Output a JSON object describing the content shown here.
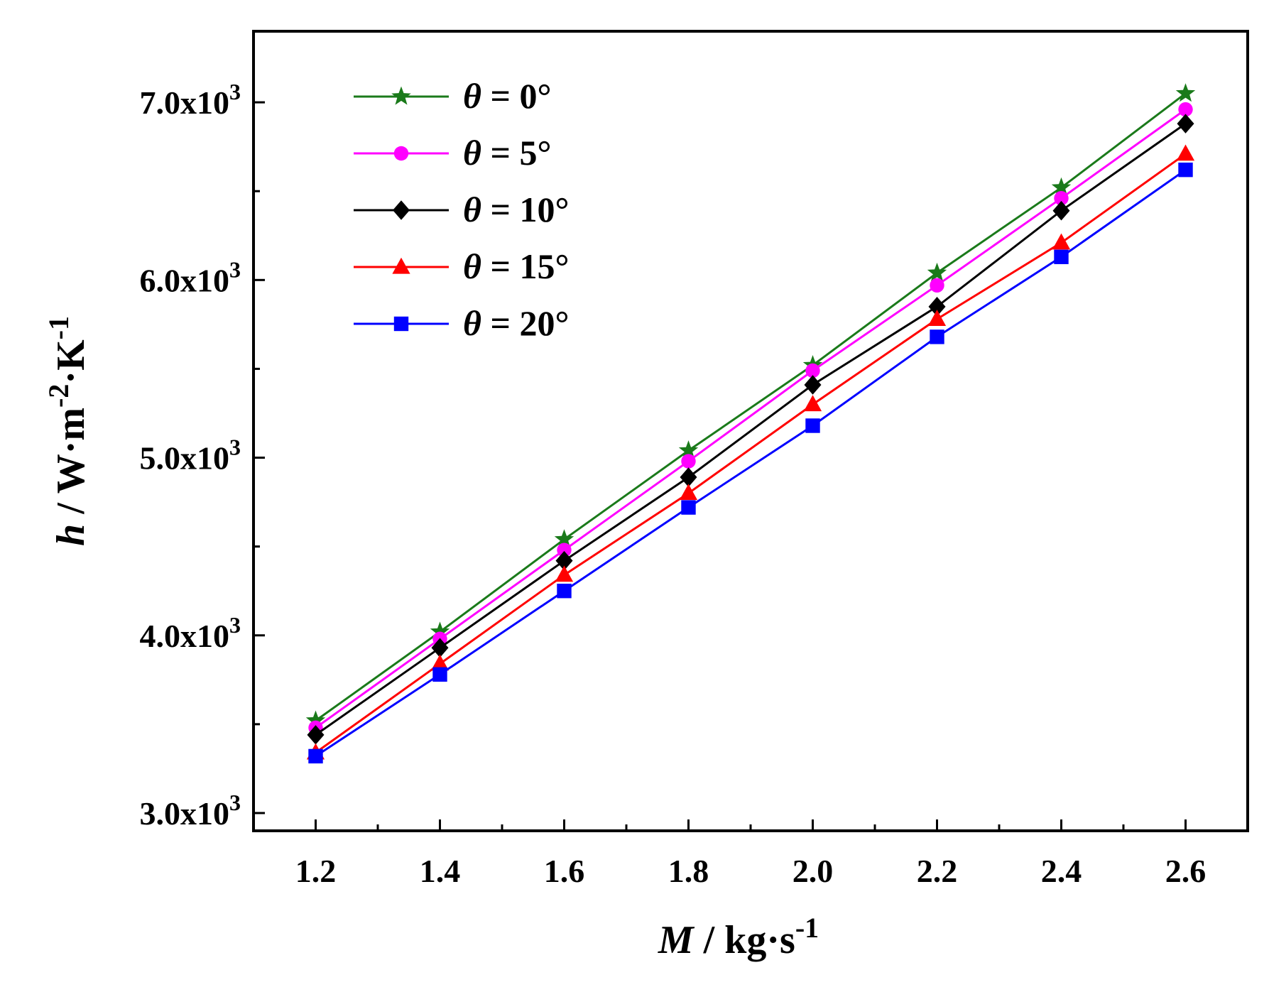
{
  "chart_data": {
    "type": "line",
    "x": [
      1.2,
      1.4,
      1.6,
      1.8,
      2.0,
      2.2,
      2.4,
      2.6
    ],
    "xlim": [
      1.1,
      2.7
    ],
    "ylim": [
      2900,
      7400
    ],
    "xticks": [
      "1.2",
      "1.4",
      "1.6",
      "1.8",
      "2.0",
      "2.2",
      "2.4",
      "2.6"
    ],
    "yticks": [
      {
        "value": 3000,
        "mantissa": "3.0x10",
        "exp": "3"
      },
      {
        "value": 4000,
        "mantissa": "4.0x10",
        "exp": "3"
      },
      {
        "value": 5000,
        "mantissa": "5.0x10",
        "exp": "3"
      },
      {
        "value": 6000,
        "mantissa": "6.0x10",
        "exp": "3"
      },
      {
        "value": 7000,
        "mantissa": "7.0x10",
        "exp": "3"
      }
    ],
    "xlabel": {
      "var": "M",
      "unit": " / kg·s",
      "exp": "-1"
    },
    "ylabel": {
      "var": "h",
      "unit": " / W·m",
      "exp1": "-2",
      "mid": "·K",
      "exp2": "-1"
    },
    "legend_position": "top-left",
    "series": [
      {
        "name": "θ = 0°",
        "symbol": "θ",
        "label": " = 0°",
        "color": "#1a7a1a",
        "marker": "star",
        "values": [
          3520,
          4020,
          4540,
          5040,
          5520,
          6040,
          6520,
          7050
        ]
      },
      {
        "name": "θ = 5°",
        "symbol": "θ",
        "label": " = 5°",
        "color": "#ff00ff",
        "marker": "circle",
        "values": [
          3480,
          3980,
          4480,
          4980,
          5490,
          5970,
          6460,
          6960
        ]
      },
      {
        "name": "θ = 10°",
        "symbol": "θ",
        "label": " = 10°",
        "color": "#000000",
        "marker": "diamond",
        "values": [
          3440,
          3930,
          4420,
          4890,
          5410,
          5850,
          6390,
          6880
        ]
      },
      {
        "name": "θ = 15°",
        "symbol": "θ",
        "label": " = 15°",
        "color": "#ff0000",
        "marker": "triangle",
        "values": [
          3340,
          3840,
          4340,
          4800,
          5300,
          5780,
          6210,
          6710
        ]
      },
      {
        "name": "θ = 20°",
        "symbol": "θ",
        "label": " = 20°",
        "color": "#0000ff",
        "marker": "square",
        "values": [
          3320,
          3780,
          4250,
          4720,
          5180,
          5680,
          6130,
          6620
        ]
      }
    ]
  }
}
